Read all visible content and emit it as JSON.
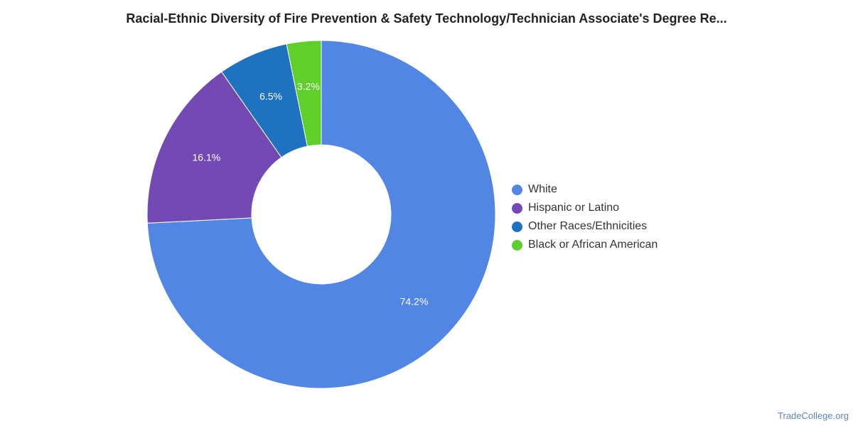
{
  "chart_data": {
    "type": "pie",
    "title": "Racial-Ethnic Diversity of Fire Prevention & Safety Technology/Technician Associate's Degree Re...",
    "donut": true,
    "legend_position": "right",
    "categories": [
      "White",
      "Hispanic or Latino",
      "Other Races/Ethnicities",
      "Black or African American"
    ],
    "values": [
      74.2,
      16.1,
      6.5,
      3.2
    ],
    "value_labels": [
      "74.2%",
      "16.1%",
      "6.5%",
      "3.2%"
    ],
    "colors": [
      "#5286e4",
      "#7349b4",
      "#1f72c0",
      "#5fcf2b"
    ]
  },
  "footer": {
    "source": "TradeCollege.org"
  }
}
